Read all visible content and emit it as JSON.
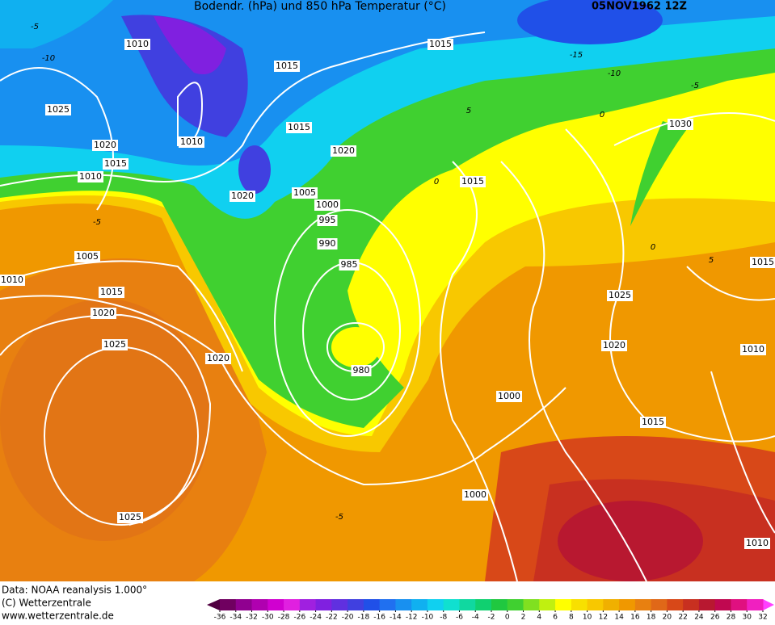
{
  "header": {
    "title": "Bodendr. (hPa) und 850 hPa Temperatur (°C)",
    "date": "05NOV1962 12Z"
  },
  "isobar_labels": [
    "1010",
    "1015",
    "1015",
    "1025",
    "1020",
    "1010",
    "1015",
    "1010",
    "1015",
    "1020",
    "1020",
    "1005",
    "1000",
    "995",
    "990",
    "985",
    "980",
    "1015",
    "1030",
    "1005",
    "1010",
    "1015",
    "1020",
    "1025",
    "1020",
    "1025",
    "1025",
    "1020",
    "1010",
    "1015",
    "1000",
    "1015",
    "1000",
    "1010"
  ],
  "isotherm_labels": [
    "-5",
    "-10",
    "-15",
    "-10",
    "-5",
    "0",
    "5",
    "0",
    "-5",
    "5",
    "0",
    "-5"
  ],
  "footer": {
    "source": "Data: NOAA reanalysis 1.000°",
    "copyright": "(C) Wetterzentrale",
    "url": "www.wetterzentrale.de"
  },
  "legend": {
    "values": [
      -36,
      -34,
      -32,
      -30,
      -28,
      -26,
      -24,
      -22,
      -20,
      -18,
      -16,
      -14,
      -12,
      -10,
      -8,
      -6,
      -4,
      -2,
      0,
      2,
      4,
      6,
      8,
      10,
      12,
      14,
      16,
      18,
      20,
      22,
      24,
      26,
      28,
      30,
      32
    ],
    "colors": [
      "#700060",
      "#900090",
      "#b000b0",
      "#d000d0",
      "#e020e0",
      "#a020e0",
      "#8020e0",
      "#6030e0",
      "#4040e0",
      "#2050e8",
      "#2070f0",
      "#1890f0",
      "#10b0f0",
      "#10d0f0",
      "#10e0d0",
      "#10d8a0",
      "#10d070",
      "#20c840",
      "#40d030",
      "#80e020",
      "#c0f010",
      "#ffff00",
      "#f8e000",
      "#f8c800",
      "#f0b000",
      "#f09800",
      "#e88010",
      "#e06818",
      "#d84818",
      "#c83020",
      "#b81830",
      "#c00850",
      "#e01080",
      "#f020c0"
    ],
    "under_color": "#500040",
    "over_color": "#ff40ff"
  }
}
